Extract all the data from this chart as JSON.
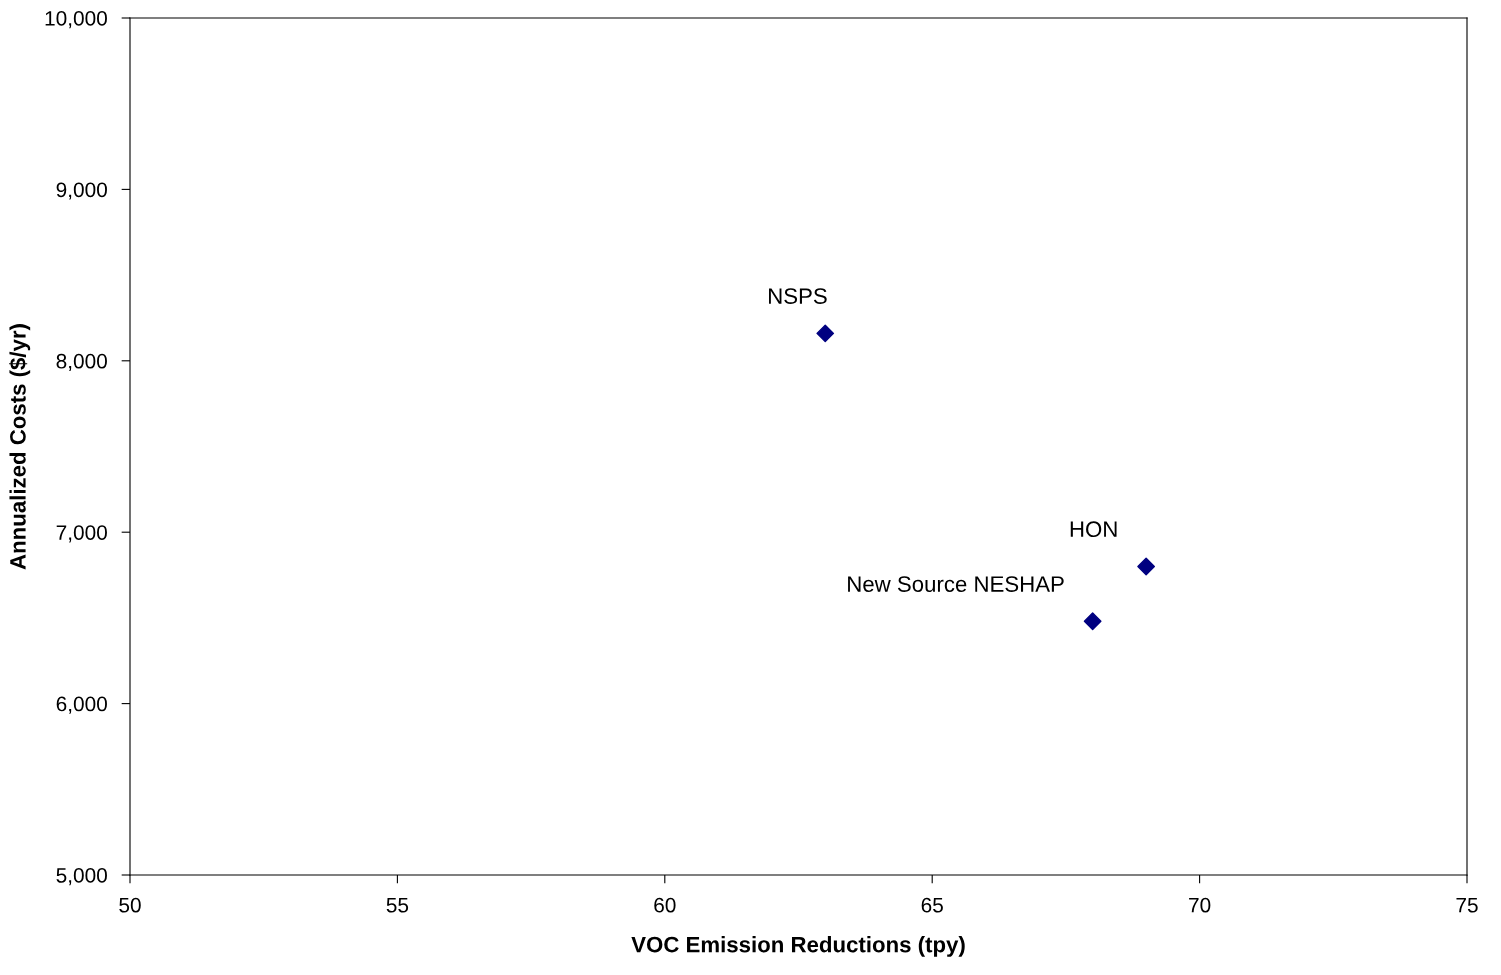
{
  "chart_data": {
    "type": "scatter",
    "xlabel": "VOC Emission Reductions (tpy)",
    "ylabel": "Annualized Costs ($/yr)",
    "x": [
      63,
      68,
      69
    ],
    "series": [
      {
        "color": "#000080",
        "values": [
          8160,
          6480,
          6800
        ]
      }
    ],
    "marker": "diamond",
    "xlim": [
      50,
      75
    ],
    "xticks": [
      50,
      55,
      60,
      65,
      70,
      75
    ],
    "ylim": [
      5000,
      10000
    ],
    "yticks": [
      {
        "value": 5000,
        "label": "5,000"
      },
      {
        "value": 6000,
        "label": "6,000"
      },
      {
        "value": 7000,
        "label": "7,000"
      },
      {
        "value": 8000,
        "label": "8,000"
      },
      {
        "value": 9000,
        "label": "9,000"
      },
      {
        "value": 10000,
        "label": "10,000"
      }
    ],
    "grid": false,
    "legend": false,
    "annotations": [
      {
        "text": "NSPS",
        "x": 63,
        "y": 8160
      },
      {
        "text": "New Source NESHAP",
        "x": 68,
        "y": 6480
      },
      {
        "text": "HON",
        "x": 69,
        "y": 6800
      }
    ]
  }
}
